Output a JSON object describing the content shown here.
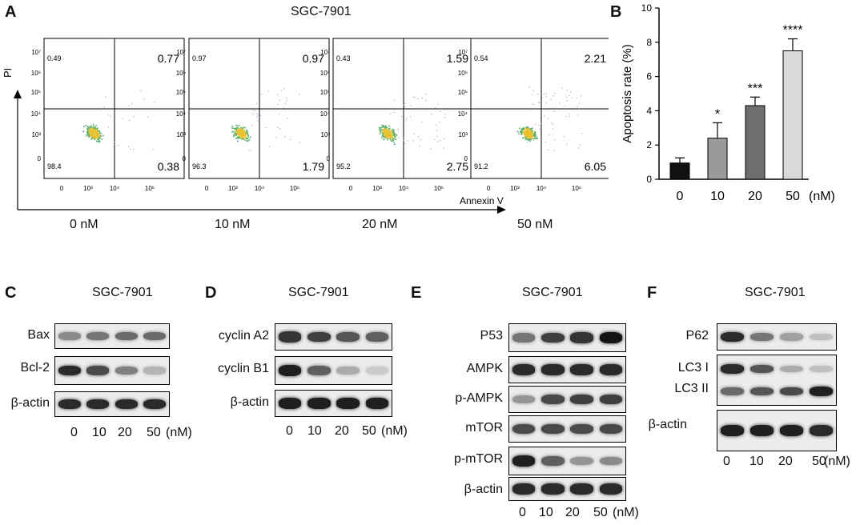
{
  "panelA": {
    "letter": "A",
    "title": "SGC-7901",
    "ylabel": "PI",
    "xlabel": "Annexin V",
    "xticks": [
      "0",
      "10³",
      "10⁴",
      "10⁶"
    ],
    "yticks": [
      "10⁷",
      "10⁶",
      "10⁵",
      "10⁴",
      "10³",
      "0"
    ],
    "plots": [
      {
        "label": "0 nM",
        "ul": "0.49",
        "ur": "0.77",
        "ll": "98.4",
        "lr": "0.38"
      },
      {
        "label": "10 nM",
        "ul": "0.97",
        "ur": "0.97",
        "ll": "96.3",
        "lr": "1.79"
      },
      {
        "label": "20 nM",
        "ul": "0.43",
        "ur": "1.59",
        "ll": "95.2",
        "lr": "2.75"
      },
      {
        "label": "50 nM",
        "ul": "0.54",
        "ur": "2.21",
        "ll": "91.2",
        "lr": "6.05"
      }
    ]
  },
  "chart_data": {
    "type": "bar",
    "letter": "B",
    "categories": [
      "0",
      "10",
      "20",
      "50"
    ],
    "unit": "(nM)",
    "values": [
      0.95,
      2.4,
      4.3,
      7.5
    ],
    "errors": [
      0.3,
      0.9,
      0.5,
      0.7
    ],
    "significance": [
      "",
      "*",
      "***",
      "****"
    ],
    "colors": [
      "#111111",
      "#9a9a9a",
      "#6e6e6e",
      "#d9d9d9"
    ],
    "ylabel": "Apoptosis rate (%)",
    "ylim": [
      0,
      10
    ],
    "yticks": [
      0,
      2,
      4,
      6,
      8,
      10
    ]
  },
  "panelC": {
    "letter": "C",
    "title": "SGC-7901",
    "rows": [
      {
        "label": "Bax",
        "intensity": [
          0.45,
          0.55,
          0.6,
          0.6
        ]
      },
      {
        "label": "Bcl-2",
        "intensity": [
          0.9,
          0.75,
          0.5,
          0.25
        ]
      },
      {
        "label": "β-actin",
        "intensity": [
          0.9,
          0.9,
          0.9,
          0.9
        ]
      }
    ],
    "lanes": [
      "0",
      "10",
      "20",
      "50"
    ],
    "unit": "(nM)"
  },
  "panelD": {
    "letter": "D",
    "title": "SGC-7901",
    "rows": [
      {
        "label": "cyclin A2",
        "intensity": [
          0.85,
          0.8,
          0.7,
          0.65
        ]
      },
      {
        "label": "cyclin B1",
        "intensity": [
          0.95,
          0.65,
          0.3,
          0.15
        ]
      },
      {
        "label": "β-actin",
        "intensity": [
          0.95,
          0.95,
          0.95,
          0.95
        ]
      }
    ],
    "lanes": [
      "0",
      "10",
      "20",
      "50"
    ],
    "unit": "(nM)"
  },
  "panelE": {
    "letter": "E",
    "title": "SGC-7901",
    "rows": [
      {
        "label": "P53",
        "intensity": [
          0.55,
          0.8,
          0.85,
          1.0
        ]
      },
      {
        "label": "AMPK",
        "intensity": [
          0.9,
          0.9,
          0.9,
          0.9
        ]
      },
      {
        "label": "p-AMPK",
        "intensity": [
          0.4,
          0.75,
          0.8,
          0.8
        ]
      },
      {
        "label": "mTOR",
        "intensity": [
          0.75,
          0.75,
          0.75,
          0.75
        ]
      },
      {
        "label": "p-mTOR",
        "intensity": [
          0.95,
          0.65,
          0.4,
          0.45
        ]
      },
      {
        "label": "β-actin",
        "intensity": [
          0.9,
          0.9,
          0.9,
          0.9
        ]
      }
    ],
    "lanes": [
      "0",
      "10",
      "20",
      "50"
    ],
    "unit": "(nM)"
  },
  "panelF": {
    "letter": "F",
    "title": "SGC-7901",
    "p62": {
      "label": "P62",
      "intensity": [
        0.9,
        0.55,
        0.35,
        0.2
      ]
    },
    "lc3": {
      "label1": "LC3 I",
      "label2": "LC3 II",
      "intensityI": [
        0.9,
        0.7,
        0.3,
        0.2
      ],
      "intensityII": [
        0.6,
        0.7,
        0.75,
        0.95
      ]
    },
    "actin": {
      "label": "β-actin",
      "intensity": [
        0.95,
        0.95,
        0.95,
        0.9
      ]
    },
    "lanes": [
      "0",
      "10",
      "20",
      "50"
    ],
    "unit": "(nM)"
  }
}
